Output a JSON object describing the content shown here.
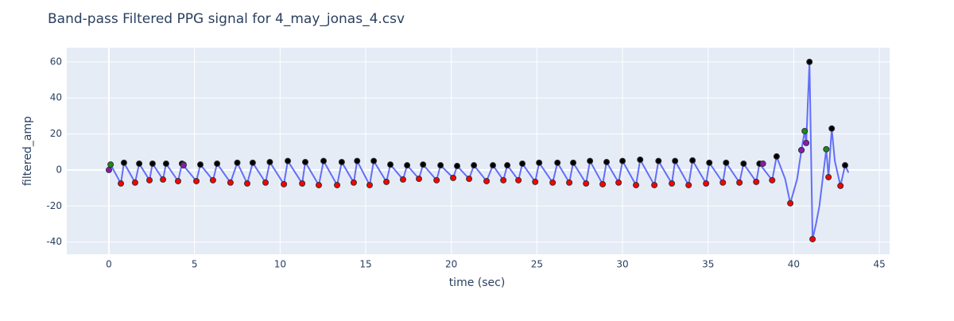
{
  "chart_data": {
    "type": "line",
    "title": "Band-pass Filtered PPG signal for 4_may_jonas_4.csv",
    "x_label": "time (sec)",
    "y_label": "filtered_amp",
    "xlim": [
      -2.46,
      45.6
    ],
    "ylim": [
      -46.8,
      67.9
    ],
    "xticks": [
      0,
      5,
      10,
      15,
      20,
      25,
      30,
      35,
      40,
      45
    ],
    "yticks": [
      -40,
      -20,
      0,
      20,
      40,
      60
    ],
    "grid": true,
    "background": "#e5ecf6",
    "series": [
      {
        "mode": "lines",
        "color": "#636efa",
        "x": [
          0,
          0.1,
          0.7,
          0.88,
          1.53,
          1.77,
          2.37,
          2.55,
          3.16,
          3.34,
          4.04,
          4.27,
          5.11,
          5.34,
          6.08,
          6.32,
          7.1,
          7.5,
          8.08,
          8.4,
          9.15,
          9.4,
          10.22,
          10.45,
          11.29,
          11.47,
          12.26,
          12.54,
          13.33,
          13.6,
          14.3,
          14.5,
          15.23,
          15.47,
          16.21,
          16.44,
          17.18,
          17.42,
          18.11,
          18.35,
          19.14,
          19.37,
          20.11,
          20.34,
          21.04,
          21.32,
          22.06,
          22.43,
          23.04,
          23.27,
          23.92,
          24.15,
          24.9,
          25.13,
          25.92,
          26.2,
          26.89,
          27.12,
          27.87,
          28.1,
          28.84,
          29.07,
          29.77,
          30.0,
          30.79,
          31.03,
          31.86,
          32.1,
          32.88,
          33.07,
          33.86,
          34.09,
          34.88,
          35.07,
          35.86,
          36.05,
          36.83,
          37.07,
          37.81,
          38.0,
          38.74,
          39.0,
          39.5,
          39.8,
          40.2,
          40.45,
          40.64,
          40.73,
          40.92,
          41.1,
          41.3,
          41.5,
          41.9,
          42.03,
          42.22,
          42.4,
          42.73,
          43.0,
          43.2
        ],
        "values": [
          0,
          3,
          -7.5,
          4,
          -7,
          3.5,
          -5.7,
          3.5,
          -5.3,
          3.5,
          -6.2,
          3.5,
          -6.2,
          3,
          -5.7,
          3.5,
          -7,
          4,
          -7.5,
          4,
          -7,
          4.4,
          -7.9,
          5,
          -7.5,
          4.4,
          -8.4,
          5,
          -8.4,
          4.4,
          -7,
          5,
          -8.4,
          5,
          -6.6,
          3,
          -5.3,
          2.6,
          -4.9,
          3,
          -5.7,
          2.6,
          -4.4,
          2.2,
          -4.9,
          2.6,
          -6.2,
          2.6,
          -5.7,
          2.6,
          -5.7,
          3.5,
          -6.6,
          4,
          -7,
          4,
          -7,
          4,
          -7.5,
          5,
          -7.9,
          4.4,
          -7,
          5,
          -8.4,
          5.7,
          -8.4,
          5,
          -7.5,
          5,
          -8.4,
          5.3,
          -7.5,
          4,
          -7,
          4,
          -7,
          3.5,
          -6.6,
          3.5,
          -5.7,
          7.5,
          -5,
          -18.5,
          -5,
          11,
          21.6,
          15,
          60,
          -38.4,
          -30,
          -20,
          11.5,
          -4,
          23,
          5,
          -8.8,
          2.6,
          -1.5
        ]
      },
      {
        "mode": "markers",
        "color": "#000000",
        "x": [
          0.88,
          1.77,
          2.55,
          3.34,
          4.27,
          5.34,
          6.32,
          7.5,
          8.4,
          9.4,
          10.45,
          11.47,
          12.54,
          13.6,
          14.5,
          15.47,
          16.44,
          17.42,
          18.35,
          19.37,
          20.34,
          21.32,
          22.43,
          23.27,
          24.15,
          25.13,
          26.2,
          27.12,
          28.1,
          29.07,
          30.0,
          31.03,
          32.1,
          33.07,
          34.09,
          35.07,
          36.05,
          37.07,
          38.0,
          39.0,
          40.92,
          42.22,
          43.0
        ],
        "values": [
          4,
          3.5,
          3.5,
          3.5,
          3.5,
          3,
          3.5,
          4,
          4,
          4.4,
          5,
          4.4,
          5,
          4.4,
          5,
          5,
          3,
          2.6,
          3,
          2.6,
          2.2,
          2.6,
          2.6,
          2.6,
          3.5,
          4,
          4,
          4,
          5,
          4.4,
          5,
          5.7,
          5,
          5,
          5.3,
          4,
          4,
          3.5,
          3.5,
          7.5,
          60,
          23,
          2.6
        ]
      },
      {
        "mode": "markers",
        "color": "#ff0000",
        "x": [
          0.7,
          1.53,
          2.37,
          3.16,
          4.04,
          5.11,
          6.08,
          7.1,
          8.08,
          9.15,
          10.22,
          11.29,
          12.26,
          13.33,
          14.3,
          15.23,
          16.21,
          17.18,
          18.11,
          19.14,
          20.11,
          21.04,
          22.06,
          23.04,
          23.92,
          24.9,
          25.92,
          26.89,
          27.87,
          28.84,
          29.77,
          30.79,
          31.86,
          32.88,
          33.86,
          34.88,
          35.86,
          36.83,
          37.81,
          38.74,
          39.8,
          41.1,
          42.03,
          42.73
        ],
        "values": [
          -7.5,
          -7,
          -5.7,
          -5.3,
          -6.2,
          -6.2,
          -5.7,
          -7,
          -7.5,
          -7,
          -7.9,
          -7.5,
          -8.4,
          -8.4,
          -7,
          -8.4,
          -6.6,
          -5.3,
          -4.9,
          -5.7,
          -4.4,
          -4.9,
          -6.2,
          -5.7,
          -5.7,
          -6.6,
          -7,
          -7,
          -7.5,
          -7.9,
          -7,
          -8.4,
          -8.4,
          -7.5,
          -8.4,
          -7.5,
          -7,
          -7,
          -6.6,
          -5.7,
          -18.5,
          -38.4,
          -4,
          -8.8
        ]
      },
      {
        "mode": "markers",
        "color": "#1a8a1a",
        "x": [
          0.1,
          4.36,
          40.45,
          40.64,
          41.9
        ],
        "values": [
          3,
          3,
          11,
          21.6,
          11.5
        ]
      },
      {
        "mode": "markers",
        "color": "#8a1ab0",
        "x": [
          0,
          4.36,
          38.2,
          40.45,
          40.73
        ],
        "values": [
          0,
          2.6,
          3.5,
          11,
          15
        ]
      }
    ]
  }
}
